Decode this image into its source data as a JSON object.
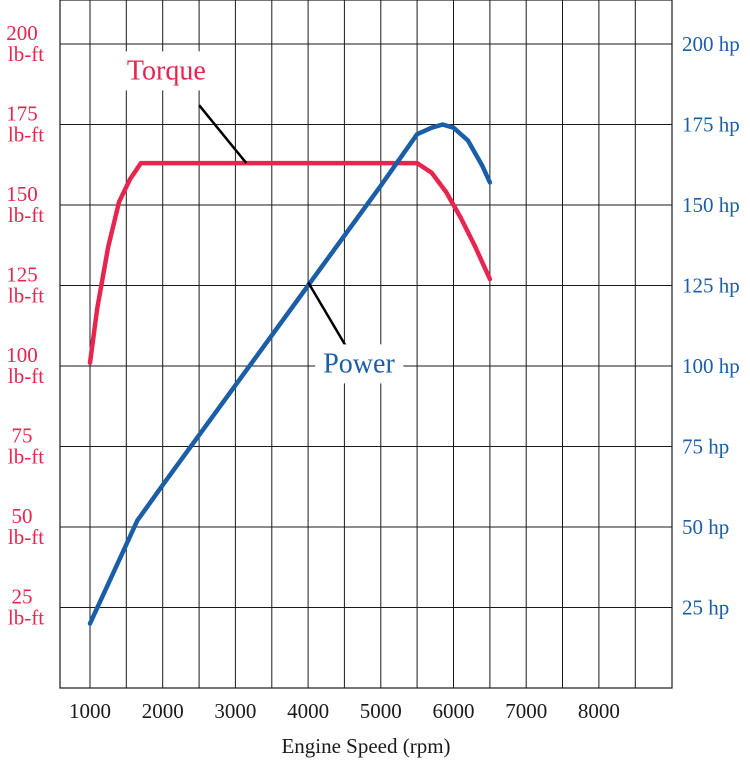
{
  "chart_data": {
    "type": "line",
    "xlabel": "Engine Speed (rpm)",
    "x_ticks": [
      1000,
      2000,
      3000,
      4000,
      5000,
      6000,
      7000,
      8000
    ],
    "xlim": [
      500,
      9000
    ],
    "ylim": [
      0,
      212
    ],
    "grid": true,
    "left_axis": {
      "color": "#e8254f",
      "ticks": [
        {
          "value": 200,
          "line1": "200",
          "line2": "lb-ft"
        },
        {
          "value": 175,
          "line1": "175",
          "line2": "lb-ft"
        },
        {
          "value": 150,
          "line1": "150",
          "line2": "lb-ft"
        },
        {
          "value": 125,
          "line1": "125",
          "line2": "lb-ft"
        },
        {
          "value": 100,
          "line1": "100",
          "line2": "lb-ft"
        },
        {
          "value": 75,
          "line1": "75",
          "line2": "lb-ft"
        },
        {
          "value": 50,
          "line1": "50",
          "line2": "lb-ft"
        },
        {
          "value": 25,
          "line1": "25",
          "line2": "lb-ft"
        }
      ]
    },
    "right_axis": {
      "color": "#1a5ea8",
      "ticks": [
        {
          "value": 200,
          "label": "200 hp"
        },
        {
          "value": 175,
          "label": "175 hp"
        },
        {
          "value": 150,
          "label": "150 hp"
        },
        {
          "value": 125,
          "label": "125 hp"
        },
        {
          "value": 100,
          "label": "100 hp"
        },
        {
          "value": 75,
          "label": "75 hp"
        },
        {
          "value": 50,
          "label": "50 hp"
        },
        {
          "value": 25,
          "label": "25 hp"
        }
      ]
    },
    "series": [
      {
        "name": "Torque",
        "axis": "left",
        "color": "#e8254f",
        "label_pos": {
          "x": 2050,
          "y": 189
        },
        "callout": {
          "from": {
            "x": 2500,
            "y": 181
          },
          "to": {
            "x": 3150,
            "y": 163
          }
        },
        "x": [
          1000,
          1100,
          1250,
          1400,
          1550,
          1700,
          2000,
          3000,
          4000,
          5000,
          5500,
          5700,
          5900,
          6100,
          6300,
          6500
        ],
        "values": [
          101,
          118,
          137,
          151,
          158,
          163,
          163,
          163,
          163,
          163,
          163,
          160,
          154,
          146,
          137,
          127
        ]
      },
      {
        "name": "Power",
        "axis": "right",
        "color": "#1a5ea8",
        "label_pos": {
          "x": 4700,
          "y": 98
        },
        "callout": {
          "from": {
            "x": 4550,
            "y": 105
          },
          "to": {
            "x": 4000,
            "y": 126
          }
        },
        "x": [
          1000,
          1650,
          2000,
          3000,
          4000,
          5000,
          5500,
          5700,
          5850,
          6000,
          6200,
          6400,
          6500
        ],
        "values": [
          20,
          52,
          63,
          94,
          125,
          156,
          172,
          174,
          175,
          174,
          170,
          162,
          157
        ]
      }
    ]
  }
}
